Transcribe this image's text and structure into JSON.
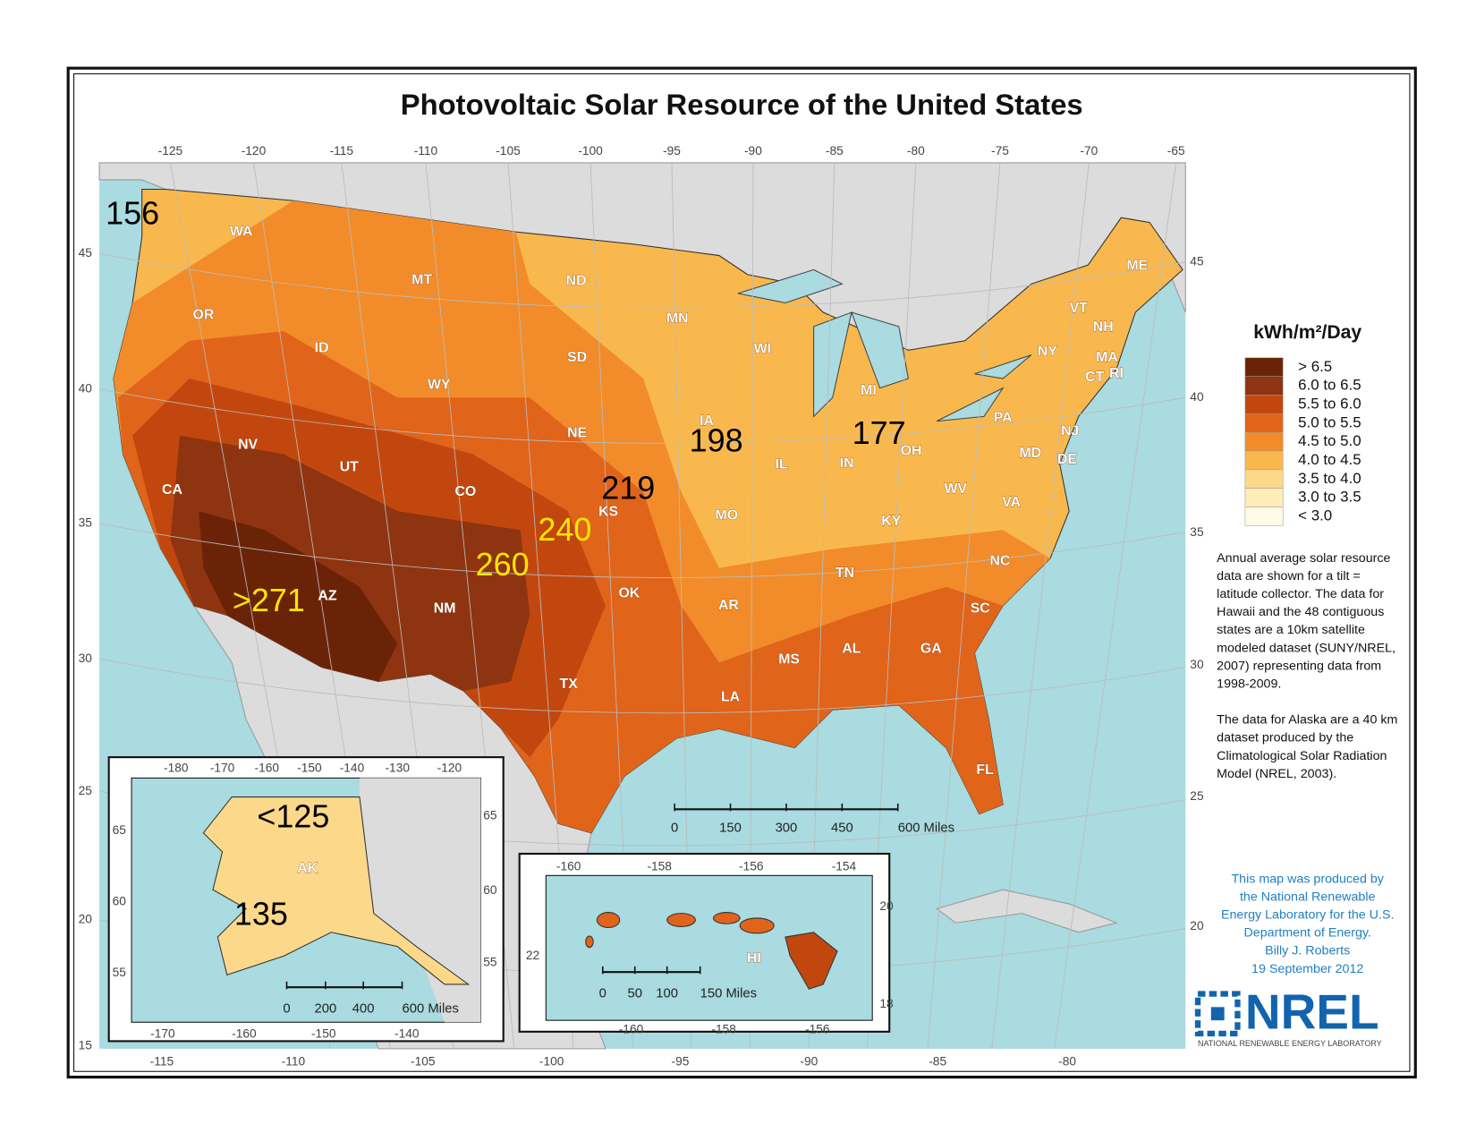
{
  "title": "Photovoltaic Solar Resource of the United States",
  "legend": {
    "title": "kWh/m²/Day",
    "items": [
      {
        "label": "> 6.5",
        "color": "#6b2308"
      },
      {
        "label": "6.0 to 6.5",
        "color": "#8e3410"
      },
      {
        "label": "5.5 to 6.0",
        "color": "#c2470f"
      },
      {
        "label": "5.0 to 5.5",
        "color": "#e0641a"
      },
      {
        "label": "4.5 to 5.0",
        "color": "#f28c2a"
      },
      {
        "label": "4.0 to 4.5",
        "color": "#f9b84d"
      },
      {
        "label": "3.5 to 4.0",
        "color": "#fcd98a"
      },
      {
        "label": "3.0 to 3.5",
        "color": "#fdedb8"
      },
      {
        "label": "< 3.0",
        "color": "#fffbe6"
      }
    ]
  },
  "notes": [
    [
      "Annual average solar resource",
      "data are shown for a tilt =",
      "latitude collector.  The data for",
      "Hawaii and the 48 contiguous",
      "states are a 10km satellite",
      "modeled dataset (SUNY/NREL,",
      "2007) representing data from",
      "1998-2009."
    ],
    [
      "The data for Alaska are a 40 km",
      "dataset produced by the",
      "Climatological Solar Radiation",
      "Model (NREL, 2003)."
    ]
  ],
  "credit": [
    "This map was produced by",
    "the National Renewable",
    "Energy Laboratory for the U.S.",
    "Department of Energy.",
    "Billy J. Roberts",
    "19 September 2012"
  ],
  "logo": {
    "name": "NREL",
    "full_name": "NATIONAL RENEWABLE ENERGY LABORATORY"
  },
  "main_map": {
    "lon_ticks_top": [
      "-125",
      "-120",
      "-115",
      "-110",
      "-105",
      "-100",
      "-95",
      "-90",
      "-85",
      "-80",
      "-75",
      "-70",
      "-65"
    ],
    "lon_ticks_bottom": [
      "-115",
      "-110",
      "-105",
      "-100",
      "-95",
      "-90",
      "-85",
      "-80"
    ],
    "lat_ticks_left": [
      "45",
      "40",
      "35",
      "30",
      "25",
      "20",
      "15"
    ],
    "lat_ticks_right": [
      "45",
      "40",
      "35",
      "30",
      "25",
      "20"
    ],
    "states": [
      "WA",
      "OR",
      "CA",
      "NV",
      "ID",
      "MT",
      "WY",
      "UT",
      "CO",
      "AZ",
      "NM",
      "ND",
      "SD",
      "NE",
      "KS",
      "OK",
      "TX",
      "MN",
      "IA",
      "MO",
      "AR",
      "LA",
      "WI",
      "IL",
      "MI",
      "IN",
      "OH",
      "KY",
      "TN",
      "MS",
      "AL",
      "GA",
      "FL",
      "SC",
      "NC",
      "VA",
      "WV",
      "PA",
      "NY",
      "MD",
      "DE",
      "NJ",
      "VT",
      "NH",
      "ME",
      "MA",
      "CT",
      "RI"
    ],
    "annotations": [
      {
        "label": "156",
        "color": "#000000"
      },
      {
        "label": "198",
        "color": "#000000"
      },
      {
        "label": "219",
        "color": "#000000"
      },
      {
        "label": "177",
        "color": "#000000"
      },
      {
        "label": "240",
        "color": "#ffe600"
      },
      {
        "label": "260",
        "color": "#ffe600"
      },
      {
        "label": ">271",
        "color": "#ffe600"
      }
    ],
    "scale": [
      "0",
      "150",
      "300",
      "450",
      "600 Miles"
    ]
  },
  "alaska": {
    "label": "AK",
    "lon_ticks_top": [
      "-180",
      "-170",
      "-160",
      "-150",
      "-140",
      "-130",
      "-120"
    ],
    "lon_ticks_bottom": [
      "-170",
      "-160",
      "-150",
      "-140"
    ],
    "lat_ticks_left": [
      "65",
      "60",
      "55"
    ],
    "lat_ticks_right": [
      "65",
      "60",
      "55"
    ],
    "annotations": [
      {
        "label": "<125",
        "color": "#000000"
      },
      {
        "label": "135",
        "color": "#000000"
      }
    ],
    "scale": [
      "0",
      "200",
      "400",
      "600 Miles"
    ]
  },
  "hawaii": {
    "label": "HI",
    "lon_ticks_top": [
      "-160",
      "-158",
      "-156",
      "-154"
    ],
    "lon_ticks_bottom": [
      "-160",
      "-158",
      "-156"
    ],
    "lat_ticks_left": [
      "22"
    ],
    "lat_ticks_right": [
      "20",
      "18"
    ],
    "scale": [
      "0",
      "50",
      "100",
      "150 Miles"
    ]
  }
}
